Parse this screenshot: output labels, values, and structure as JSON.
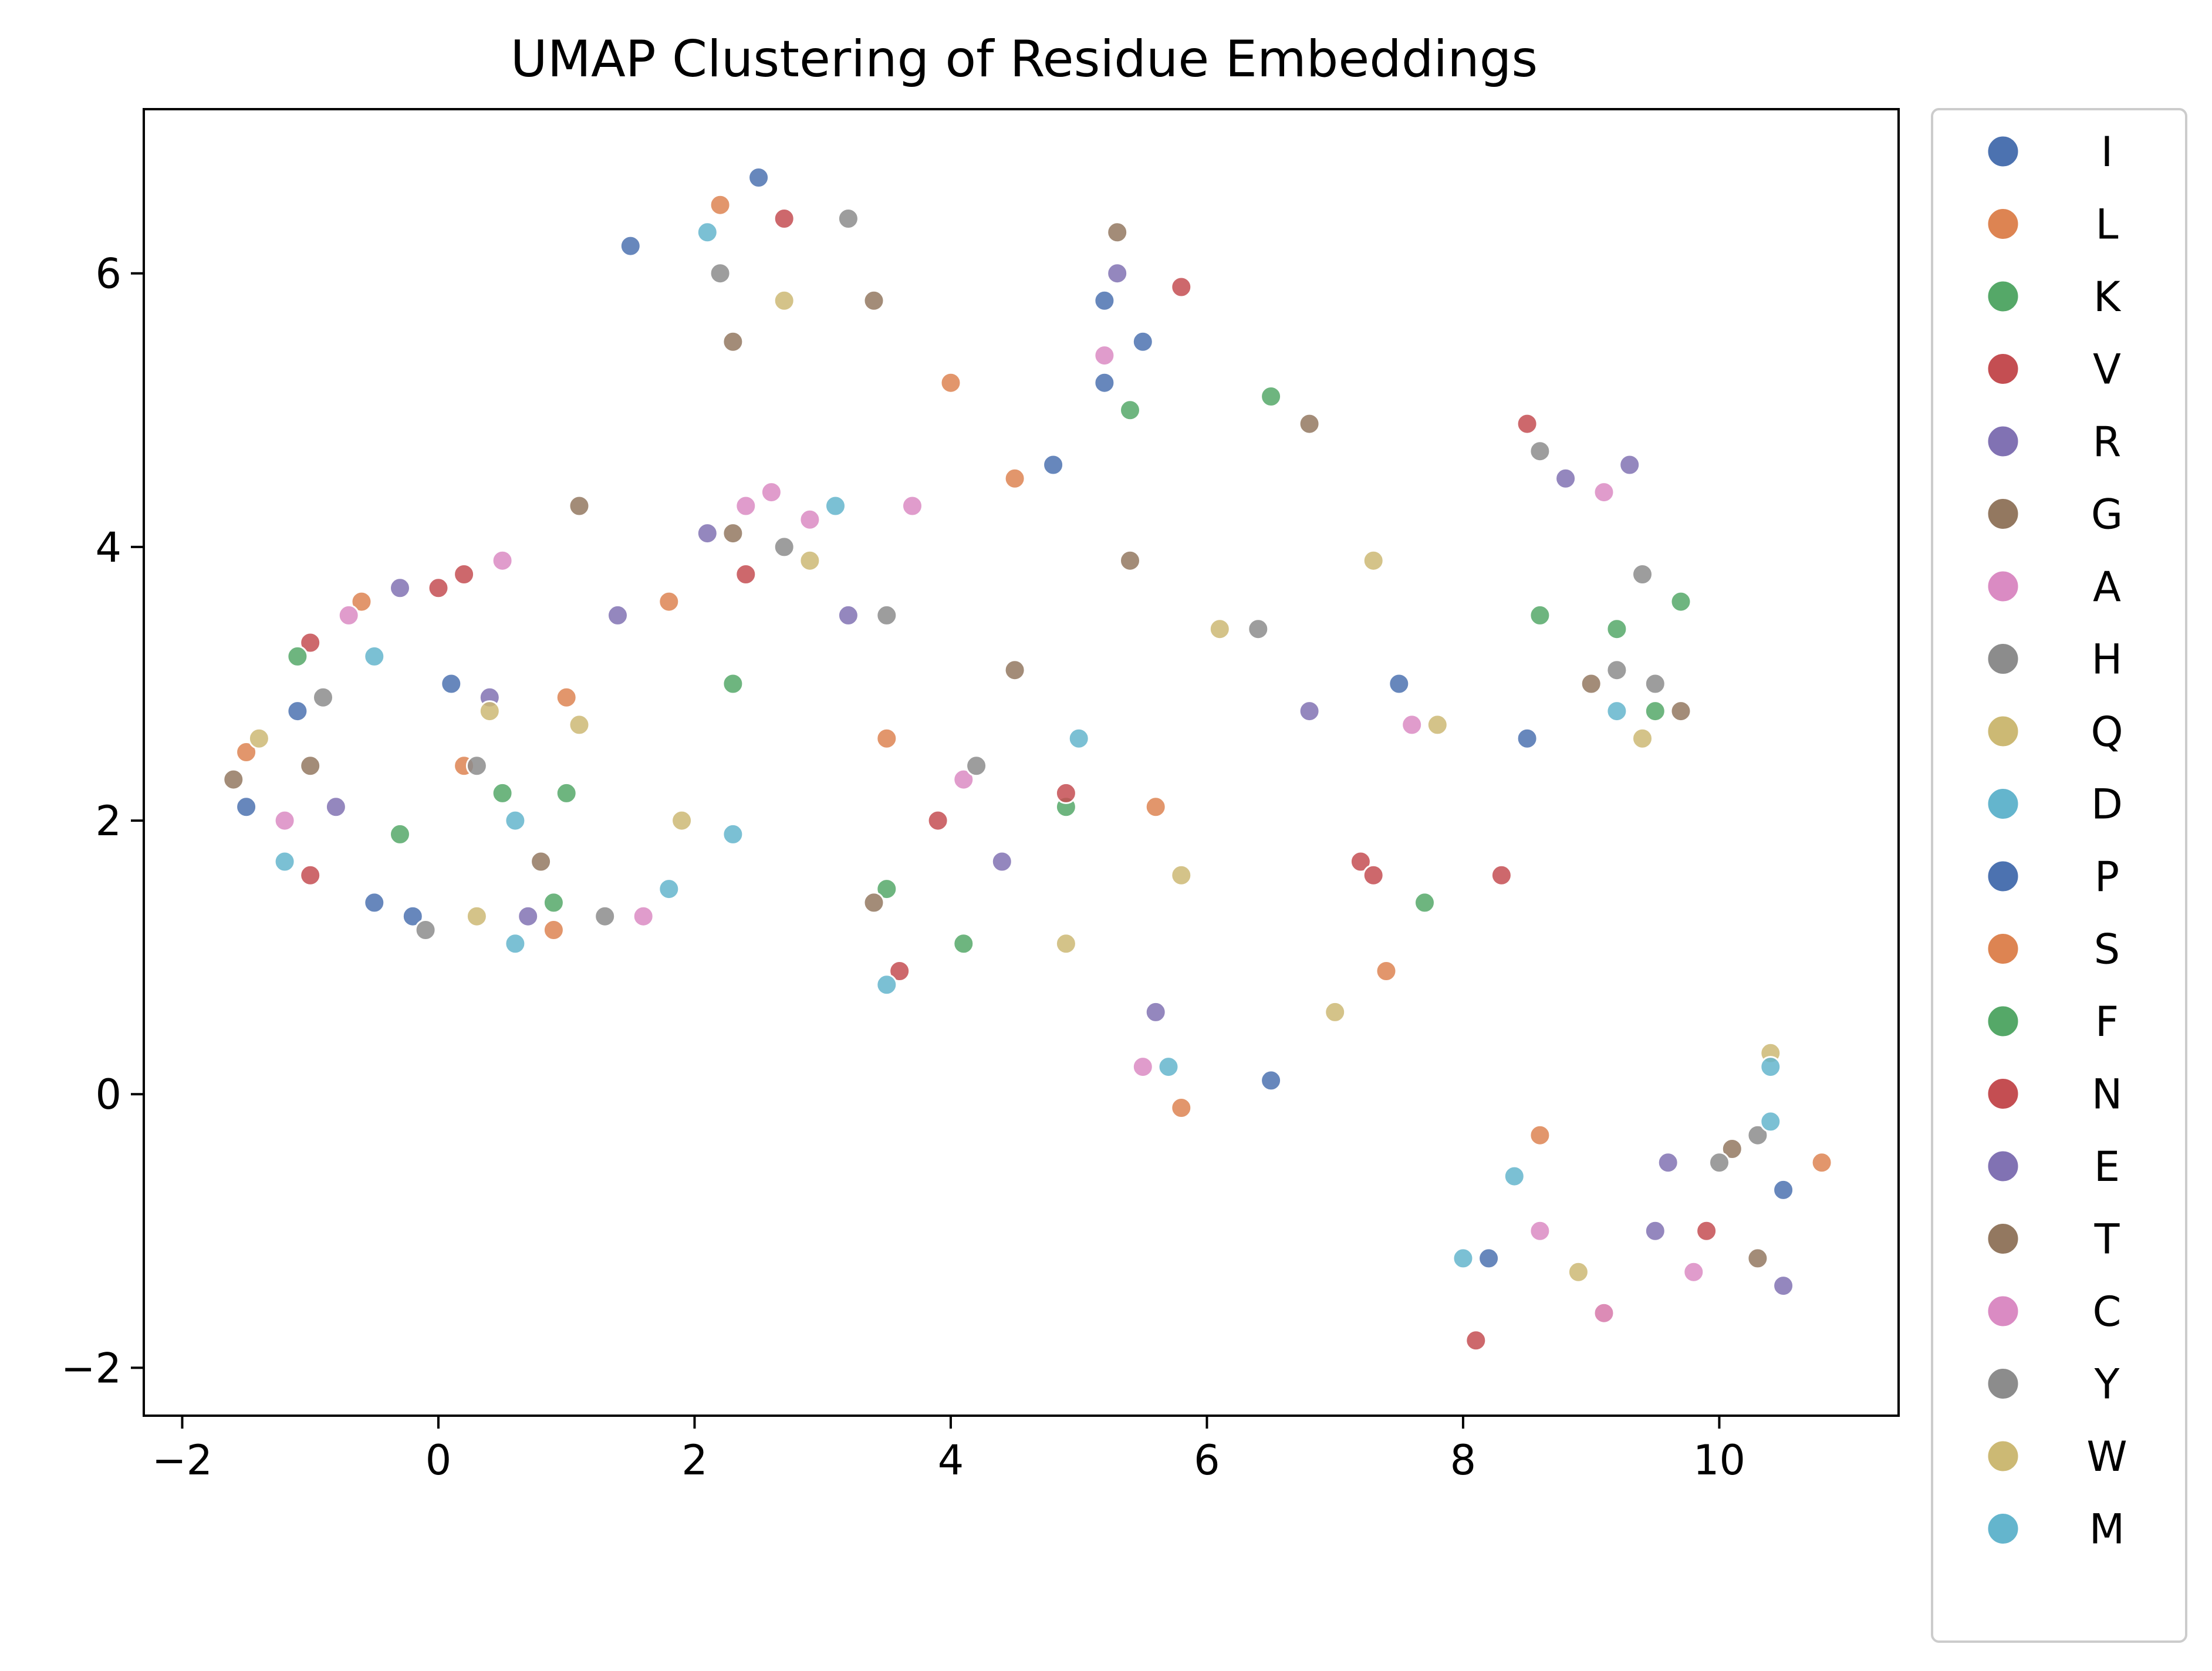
{
  "chart_data": {
    "type": "scatter",
    "title": "UMAP Clustering of Residue Embeddings",
    "xlabel": "",
    "ylabel": "",
    "xlim": [
      -2.3,
      11.4
    ],
    "ylim": [
      -2.35,
      7.2
    ],
    "x_ticks": [
      -2,
      0,
      2,
      4,
      6,
      8,
      10
    ],
    "y_ticks": [
      -2,
      0,
      2,
      4,
      6
    ],
    "x_tick_labels": [
      "−2",
      "0",
      "2",
      "4",
      "6",
      "8",
      "10"
    ],
    "y_tick_labels": [
      "−2",
      "0",
      "2",
      "4",
      "6"
    ],
    "grid": false,
    "legend_position": "outside-right",
    "series": [
      {
        "name": "I",
        "color": "#4c72b0",
        "points": [
          [
            -1.5,
            2.1
          ],
          [
            -0.5,
            1.4
          ],
          [
            0.1,
            3.0
          ],
          [
            2.5,
            6.7
          ],
          [
            5.2,
            5.2
          ],
          [
            5.5,
            5.5
          ],
          [
            7.5,
            3.0
          ],
          [
            8.5,
            2.6
          ]
        ]
      },
      {
        "name": "L",
        "color": "#dd8452",
        "points": [
          [
            -1.5,
            2.5
          ],
          [
            0.2,
            2.4
          ],
          [
            0.9,
            1.2
          ],
          [
            2.2,
            6.5
          ],
          [
            4.0,
            5.2
          ],
          [
            4.5,
            4.5
          ],
          [
            7.4,
            0.9
          ],
          [
            9.1,
            -1.6
          ]
        ]
      },
      {
        "name": "K",
        "color": "#55a868",
        "points": [
          [
            -0.3,
            1.9
          ],
          [
            0.5,
            2.2
          ],
          [
            2.3,
            3.0
          ],
          [
            3.5,
            1.5
          ],
          [
            4.9,
            2.1
          ],
          [
            6.5,
            5.1
          ],
          [
            9.2,
            3.4
          ],
          [
            9.5,
            2.8
          ]
        ]
      },
      {
        "name": "V",
        "color": "#c44e52",
        "points": [
          [
            -1.0,
            3.3
          ],
          [
            0.0,
            3.7
          ],
          [
            2.4,
            3.8
          ],
          [
            3.9,
            2.0
          ],
          [
            5.8,
            5.9
          ],
          [
            7.2,
            1.7
          ],
          [
            8.5,
            4.9
          ],
          [
            9.9,
            -1.0
          ]
        ]
      },
      {
        "name": "R",
        "color": "#8172b3",
        "points": [
          [
            -0.3,
            3.7
          ],
          [
            0.4,
            2.9
          ],
          [
            2.1,
            4.1
          ],
          [
            3.2,
            3.5
          ],
          [
            5.3,
            6.0
          ],
          [
            8.8,
            4.5
          ],
          [
            9.3,
            4.6
          ],
          [
            9.6,
            -0.5
          ]
        ]
      },
      {
        "name": "G",
        "color": "#937860",
        "points": [
          [
            -1.6,
            2.3
          ],
          [
            1.1,
            4.3
          ],
          [
            2.3,
            5.5
          ],
          [
            3.4,
            5.8
          ],
          [
            5.3,
            6.3
          ],
          [
            6.8,
            4.9
          ],
          [
            9.0,
            3.0
          ],
          [
            10.1,
            -0.4
          ]
        ]
      },
      {
        "name": "A",
        "color": "#da8bc3",
        "points": [
          [
            -1.2,
            2.0
          ],
          [
            0.5,
            3.9
          ],
          [
            2.4,
            4.3
          ],
          [
            2.9,
            4.2
          ],
          [
            3.7,
            4.3
          ],
          [
            5.2,
            5.4
          ],
          [
            9.1,
            4.4
          ],
          [
            9.8,
            -1.3
          ]
        ]
      },
      {
        "name": "H",
        "color": "#8c8c8c",
        "points": [
          [
            -0.9,
            2.9
          ],
          [
            0.3,
            2.4
          ],
          [
            2.2,
            6.0
          ],
          [
            3.2,
            6.4
          ],
          [
            6.4,
            3.4
          ],
          [
            9.4,
            3.8
          ],
          [
            9.2,
            3.1
          ],
          [
            10.3,
            -0.3
          ]
        ]
      },
      {
        "name": "Q",
        "color": "#ccb974",
        "points": [
          [
            -1.4,
            2.6
          ],
          [
            0.3,
            1.3
          ],
          [
            1.9,
            2.0
          ],
          [
            2.7,
            5.8
          ],
          [
            6.1,
            3.4
          ],
          [
            7.3,
            3.9
          ],
          [
            9.4,
            2.6
          ],
          [
            10.4,
            0.3
          ]
        ]
      },
      {
        "name": "D",
        "color": "#64b5cd",
        "points": [
          [
            -1.2,
            1.7
          ],
          [
            0.6,
            2.0
          ],
          [
            2.1,
            6.3
          ],
          [
            3.1,
            4.3
          ],
          [
            5.7,
            0.2
          ],
          [
            8.0,
            -1.2
          ],
          [
            9.2,
            2.8
          ],
          [
            10.4,
            0.2
          ]
        ]
      },
      {
        "name": "P",
        "color": "#4c72b0",
        "points": [
          [
            -1.1,
            2.8
          ],
          [
            -0.2,
            1.3
          ],
          [
            1.5,
            6.2
          ],
          [
            4.8,
            4.6
          ],
          [
            5.2,
            5.8
          ],
          [
            6.5,
            0.1
          ],
          [
            8.2,
            -1.2
          ],
          [
            10.5,
            -0.7
          ]
        ]
      },
      {
        "name": "S",
        "color": "#dd8452",
        "points": [
          [
            -0.6,
            3.6
          ],
          [
            1.0,
            2.9
          ],
          [
            1.8,
            3.6
          ],
          [
            3.5,
            2.6
          ],
          [
            5.6,
            2.1
          ],
          [
            5.8,
            -0.1
          ],
          [
            8.6,
            -0.3
          ],
          [
            10.8,
            -0.5
          ]
        ]
      },
      {
        "name": "F",
        "color": "#55a868",
        "points": [
          [
            -1.1,
            3.2
          ],
          [
            1.0,
            2.2
          ],
          [
            0.9,
            1.4
          ],
          [
            4.1,
            1.1
          ],
          [
            5.4,
            5.0
          ],
          [
            7.7,
            1.4
          ],
          [
            8.6,
            3.5
          ],
          [
            9.7,
            3.6
          ]
        ]
      },
      {
        "name": "N",
        "color": "#c44e52",
        "points": [
          [
            -1.0,
            1.6
          ],
          [
            0.2,
            3.8
          ],
          [
            2.7,
            6.4
          ],
          [
            3.6,
            0.9
          ],
          [
            4.9,
            2.2
          ],
          [
            7.3,
            1.6
          ],
          [
            8.3,
            1.6
          ],
          [
            8.1,
            -1.8
          ]
        ]
      },
      {
        "name": "E",
        "color": "#8172b3",
        "points": [
          [
            -0.8,
            2.1
          ],
          [
            0.7,
            1.3
          ],
          [
            1.4,
            3.5
          ],
          [
            4.4,
            1.7
          ],
          [
            5.6,
            0.6
          ],
          [
            6.8,
            2.8
          ],
          [
            9.5,
            -1.0
          ],
          [
            10.5,
            -1.4
          ]
        ]
      },
      {
        "name": "T",
        "color": "#937860",
        "points": [
          [
            -1.0,
            2.4
          ],
          [
            0.8,
            1.7
          ],
          [
            2.3,
            4.1
          ],
          [
            3.4,
            1.4
          ],
          [
            4.5,
            3.1
          ],
          [
            5.4,
            3.9
          ],
          [
            9.7,
            2.8
          ],
          [
            10.3,
            -1.2
          ]
        ]
      },
      {
        "name": "C",
        "color": "#da8bc3",
        "points": [
          [
            -0.7,
            3.5
          ],
          [
            1.6,
            1.3
          ],
          [
            2.6,
            4.4
          ],
          [
            4.1,
            2.3
          ],
          [
            5.5,
            0.2
          ],
          [
            7.6,
            2.7
          ],
          [
            8.6,
            -1.0
          ],
          [
            9.1,
            -1.6
          ]
        ]
      },
      {
        "name": "Y",
        "color": "#8c8c8c",
        "points": [
          [
            -0.1,
            1.2
          ],
          [
            1.3,
            1.3
          ],
          [
            2.7,
            4.0
          ],
          [
            3.5,
            3.5
          ],
          [
            4.2,
            2.4
          ],
          [
            8.6,
            4.7
          ],
          [
            10.0,
            -0.5
          ],
          [
            9.5,
            3.0
          ]
        ]
      },
      {
        "name": "W",
        "color": "#ccb974",
        "points": [
          [
            0.4,
            2.8
          ],
          [
            1.1,
            2.7
          ],
          [
            2.9,
            3.9
          ],
          [
            4.9,
            1.1
          ],
          [
            5.8,
            1.6
          ],
          [
            7.0,
            0.6
          ],
          [
            7.8,
            2.7
          ],
          [
            8.9,
            -1.3
          ]
        ]
      },
      {
        "name": "M",
        "color": "#64b5cd",
        "points": [
          [
            -0.5,
            3.2
          ],
          [
            0.6,
            1.1
          ],
          [
            1.8,
            1.5
          ],
          [
            2.3,
            1.9
          ],
          [
            3.5,
            0.8
          ],
          [
            5.0,
            2.6
          ],
          [
            8.4,
            -0.6
          ],
          [
            10.4,
            -0.2
          ]
        ]
      }
    ]
  }
}
